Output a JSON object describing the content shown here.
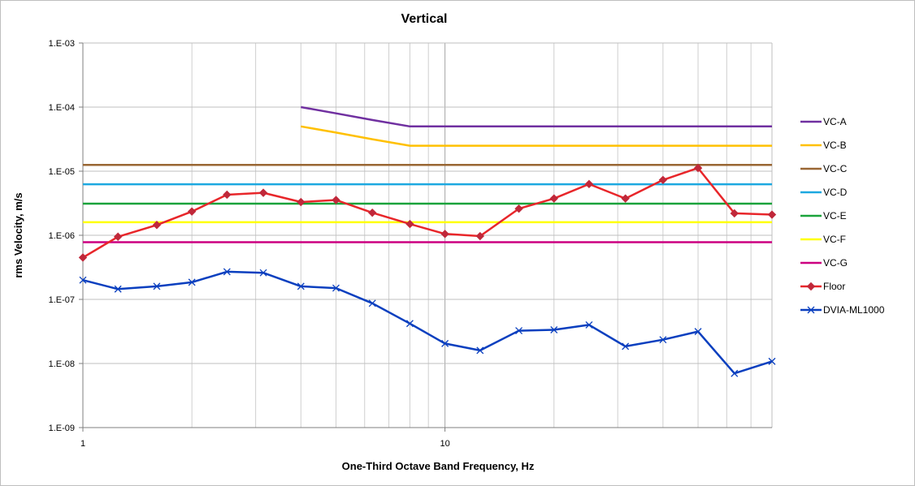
{
  "chart_data": {
    "type": "line",
    "title": "Vertical",
    "xlabel": "One-Third Octave Band Frequency, Hz",
    "ylabel": "rms Velocity, m/s",
    "x_scale": "log",
    "y_scale": "log",
    "xlim": [
      1,
      80
    ],
    "ylim": [
      1e-09,
      0.001
    ],
    "grid": true,
    "legend_position": "right",
    "x_tick_labels": [
      {
        "value": 1,
        "label": "1"
      },
      {
        "value": 10,
        "label": "10"
      }
    ],
    "y_tick_labels": [
      {
        "value": 0.001,
        "label": "1.E-03"
      },
      {
        "value": 0.0001,
        "label": "1.E-04"
      },
      {
        "value": 1e-05,
        "label": "1.E-05"
      },
      {
        "value": 1e-06,
        "label": "1.E-06"
      },
      {
        "value": 1e-07,
        "label": "1.E-07"
      },
      {
        "value": 1e-08,
        "label": "1.E-08"
      },
      {
        "value": 1e-09,
        "label": "1.E-09"
      }
    ],
    "series": [
      {
        "name": "VC-A",
        "color": "#7030a0",
        "marker": "none",
        "x": [
          4,
          5,
          6.3,
          8,
          10,
          12.5,
          16,
          20,
          25,
          31.5,
          40,
          50,
          63,
          80
        ],
        "y": [
          0.0001,
          8e-05,
          6.3e-05,
          5e-05,
          5e-05,
          5e-05,
          5e-05,
          5e-05,
          5e-05,
          5e-05,
          5e-05,
          5e-05,
          5e-05,
          5e-05
        ]
      },
      {
        "name": "VC-B",
        "color": "#ffc000",
        "marker": "none",
        "x": [
          4,
          5,
          6.3,
          8,
          10,
          12.5,
          16,
          20,
          25,
          31.5,
          40,
          50,
          63,
          80
        ],
        "y": [
          5e-05,
          4e-05,
          3.15e-05,
          2.5e-05,
          2.5e-05,
          2.5e-05,
          2.5e-05,
          2.5e-05,
          2.5e-05,
          2.5e-05,
          2.5e-05,
          2.5e-05,
          2.5e-05,
          2.5e-05
        ]
      },
      {
        "name": "VC-C",
        "color": "#996633",
        "marker": "none",
        "x": [
          1,
          80
        ],
        "y": [
          1.25e-05,
          1.25e-05
        ]
      },
      {
        "name": "VC-D",
        "color": "#1ca8e0",
        "marker": "none",
        "x": [
          1,
          80
        ],
        "y": [
          6.25e-06,
          6.25e-06
        ]
      },
      {
        "name": "VC-E",
        "color": "#1aa33b",
        "marker": "none",
        "x": [
          1,
          80
        ],
        "y": [
          3.12e-06,
          3.12e-06
        ]
      },
      {
        "name": "VC-F",
        "color": "#ffff00",
        "marker": "none",
        "x": [
          1,
          80
        ],
        "y": [
          1.6e-06,
          1.6e-06
        ]
      },
      {
        "name": "VC-G",
        "color": "#cc0080",
        "marker": "none",
        "x": [
          1,
          80
        ],
        "y": [
          7.8e-07,
          7.8e-07
        ]
      },
      {
        "name": "Floor",
        "color": "#e8262a",
        "marker": "diamond",
        "x": [
          1,
          1.25,
          1.6,
          2,
          2.5,
          3.15,
          4,
          5,
          6.3,
          8,
          10,
          12.5,
          16,
          20,
          25,
          31.5,
          40,
          50,
          63,
          80
        ],
        "y": [
          4.5e-07,
          9.5e-07,
          1.45e-06,
          2.35e-06,
          4.3e-06,
          4.6e-06,
          3.3e-06,
          3.55e-06,
          2.25e-06,
          1.5e-06,
          1.05e-06,
          9.7e-07,
          2.6e-06,
          3.75e-06,
          6.3e-06,
          3.75e-06,
          7.3e-06,
          1.12e-05,
          2.2e-06,
          2.1e-06
        ]
      },
      {
        "name": "DVIA-ML1000",
        "color": "#0a3fbf",
        "marker": "x",
        "x": [
          1,
          1.25,
          1.6,
          2,
          2.5,
          3.15,
          4,
          5,
          6.3,
          8,
          10,
          12.5,
          16,
          20,
          25,
          31.5,
          40,
          50,
          63,
          80
        ],
        "y": [
          2e-07,
          1.45e-07,
          1.6e-07,
          1.85e-07,
          2.7e-07,
          2.6e-07,
          1.6e-07,
          1.5e-07,
          8.7e-08,
          4.2e-08,
          2.05e-08,
          1.6e-08,
          3.25e-08,
          3.35e-08,
          4e-08,
          1.85e-08,
          2.35e-08,
          3.15e-08,
          7e-09,
          1.08e-08
        ]
      }
    ]
  }
}
